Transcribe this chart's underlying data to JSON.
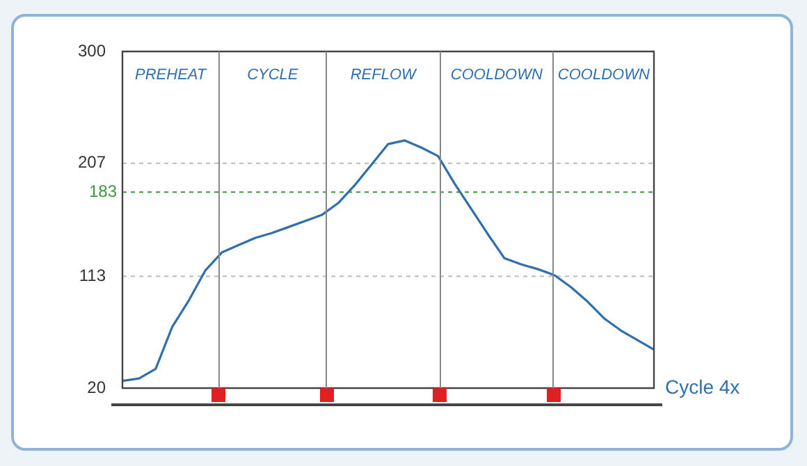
{
  "chart_data": {
    "type": "line",
    "xlabel": "Cycle 4x",
    "categories": [
      null,
      null,
      null,
      null,
      null,
      null,
      null,
      null,
      null,
      null,
      null,
      null,
      null,
      null,
      null,
      null,
      null,
      null,
      null,
      null,
      null,
      null,
      null,
      null,
      null,
      null,
      null,
      null,
      null,
      null,
      null,
      null,
      null
    ],
    "series": [
      {
        "color": "#2f6fad",
        "values": [
          26,
          28,
          36,
          71,
          93,
          118,
          133,
          139,
          145,
          149,
          154,
          159,
          164,
          174,
          189,
          206,
          223,
          226,
          220,
          213,
          190,
          169,
          148,
          128,
          123,
          119,
          114,
          104,
          92,
          78,
          68,
          60,
          52
        ]
      }
    ],
    "ylim": [
      20,
      300
    ],
    "yticks": [
      20,
      113,
      207,
      300
    ],
    "grid": "y",
    "tick_labels": "y",
    "marker": "none",
    "line_style": "solid",
    "ref_lines": [
      {
        "axis": "y",
        "value": 183,
        "label": "183",
        "color": "#3a9a3a",
        "line_style": "dashed"
      }
    ],
    "annotations": [
      "PREHEAT",
      "CYCLE",
      "REFLOW",
      "COOLDOWN",
      "COOLDOWN"
    ]
  }
}
